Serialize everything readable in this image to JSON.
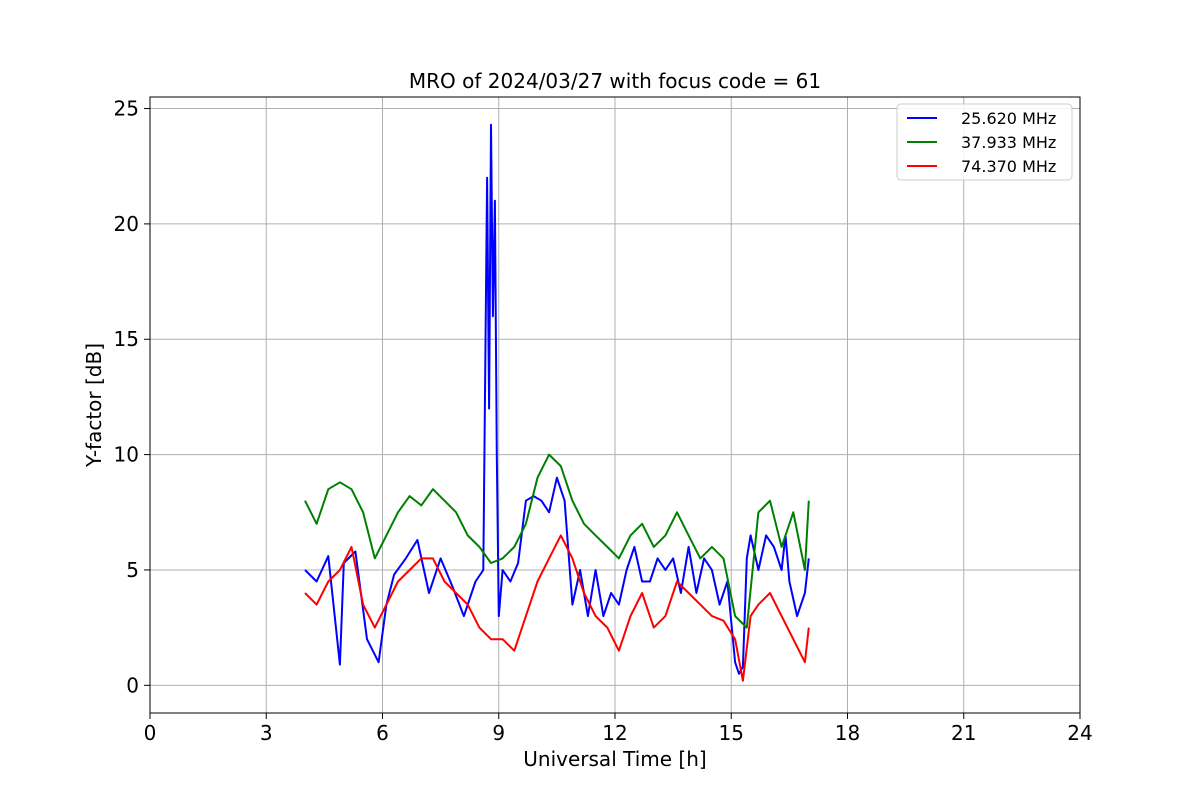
{
  "chart_data": {
    "type": "line",
    "title": "MRO of 2024/03/27 with focus code = 61",
    "xlabel": "Universal Time [h]",
    "ylabel": "Y-factor [dB]",
    "xlim": [
      0,
      24
    ],
    "ylim": [
      -1.2,
      25.5
    ],
    "xticks": [
      0,
      3,
      6,
      9,
      12,
      15,
      18,
      21,
      24
    ],
    "yticks": [
      0,
      5,
      10,
      15,
      20,
      25
    ],
    "grid": true,
    "legend_position": "top-right",
    "series": [
      {
        "name": "25.620 MHz",
        "color": "#0000ff",
        "x": [
          4.0,
          4.3,
          4.6,
          4.9,
          5.0,
          5.3,
          5.6,
          5.9,
          6.1,
          6.3,
          6.6,
          6.9,
          7.2,
          7.5,
          7.8,
          8.1,
          8.4,
          8.6,
          8.7,
          8.75,
          8.8,
          8.85,
          8.9,
          8.95,
          9.0,
          9.1,
          9.3,
          9.5,
          9.7,
          9.9,
          10.1,
          10.3,
          10.5,
          10.7,
          10.9,
          11.1,
          11.3,
          11.5,
          11.7,
          11.9,
          12.1,
          12.3,
          12.5,
          12.7,
          12.9,
          13.1,
          13.3,
          13.5,
          13.7,
          13.9,
          14.1,
          14.3,
          14.5,
          14.7,
          14.9,
          15.1,
          15.2,
          15.3,
          15.4,
          15.5,
          15.7,
          15.9,
          16.1,
          16.3,
          16.4,
          16.5,
          16.7,
          16.9,
          17.0
        ],
        "y": [
          5.0,
          4.5,
          5.6,
          0.9,
          5.3,
          5.8,
          2.0,
          1.0,
          3.5,
          4.8,
          5.5,
          6.3,
          4.0,
          5.5,
          4.3,
          3.0,
          4.5,
          5.0,
          22.0,
          12.0,
          24.3,
          16.0,
          21.0,
          10.0,
          3.0,
          5.0,
          4.5,
          5.3,
          8.0,
          8.2,
          8.0,
          7.5,
          9.0,
          8.0,
          3.5,
          5.0,
          3.0,
          5.0,
          3.0,
          4.0,
          3.5,
          5.0,
          6.0,
          4.5,
          4.5,
          5.5,
          5.0,
          5.5,
          4.0,
          6.0,
          4.0,
          5.5,
          5.0,
          3.5,
          4.5,
          1.0,
          0.5,
          0.8,
          5.5,
          6.5,
          5.0,
          6.5,
          6.0,
          5.0,
          6.5,
          4.5,
          3.0,
          4.0,
          5.5
        ]
      },
      {
        "name": "37.933 MHz",
        "color": "#008000",
        "x": [
          4.0,
          4.3,
          4.6,
          4.9,
          5.2,
          5.5,
          5.8,
          6.1,
          6.4,
          6.7,
          7.0,
          7.3,
          7.6,
          7.9,
          8.2,
          8.5,
          8.8,
          9.1,
          9.4,
          9.7,
          10.0,
          10.3,
          10.6,
          10.9,
          11.2,
          11.5,
          11.8,
          12.1,
          12.4,
          12.7,
          13.0,
          13.3,
          13.6,
          13.9,
          14.2,
          14.5,
          14.8,
          15.1,
          15.4,
          15.7,
          16.0,
          16.3,
          16.6,
          16.9,
          17.0
        ],
        "y": [
          8.0,
          7.0,
          8.5,
          8.8,
          8.5,
          7.5,
          5.5,
          6.5,
          7.5,
          8.2,
          7.8,
          8.5,
          8.0,
          7.5,
          6.5,
          6.0,
          5.3,
          5.5,
          6.0,
          7.0,
          9.0,
          10.0,
          9.5,
          8.0,
          7.0,
          6.5,
          6.0,
          5.5,
          6.5,
          7.0,
          6.0,
          6.5,
          7.5,
          6.5,
          5.5,
          6.0,
          5.5,
          3.0,
          2.5,
          7.5,
          8.0,
          6.0,
          7.5,
          5.0,
          8.0
        ]
      },
      {
        "name": "74.370 MHz",
        "color": "#ff0000",
        "x": [
          4.0,
          4.3,
          4.6,
          4.9,
          5.2,
          5.5,
          5.8,
          6.1,
          6.4,
          6.7,
          7.0,
          7.3,
          7.6,
          7.9,
          8.2,
          8.5,
          8.8,
          9.1,
          9.4,
          9.7,
          10.0,
          10.3,
          10.6,
          10.9,
          11.2,
          11.5,
          11.8,
          12.1,
          12.4,
          12.7,
          13.0,
          13.3,
          13.6,
          13.9,
          14.2,
          14.5,
          14.8,
          15.1,
          15.3,
          15.5,
          15.7,
          16.0,
          16.3,
          16.6,
          16.9,
          17.0
        ],
        "y": [
          4.0,
          3.5,
          4.5,
          5.0,
          6.0,
          3.5,
          2.5,
          3.5,
          4.5,
          5.0,
          5.5,
          5.5,
          4.5,
          4.0,
          3.5,
          2.5,
          2.0,
          2.0,
          1.5,
          3.0,
          4.5,
          5.5,
          6.5,
          5.5,
          4.0,
          3.0,
          2.5,
          1.5,
          3.0,
          4.0,
          2.5,
          3.0,
          4.5,
          4.0,
          3.5,
          3.0,
          2.8,
          2.0,
          0.2,
          3.0,
          3.5,
          4.0,
          3.0,
          2.0,
          1.0,
          2.5
        ]
      }
    ]
  }
}
